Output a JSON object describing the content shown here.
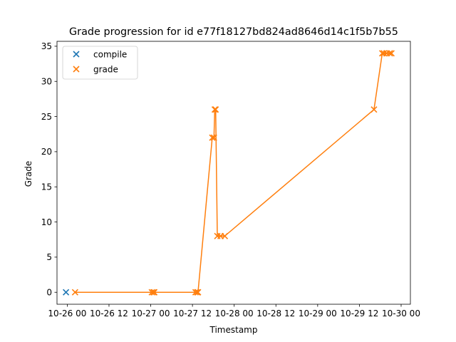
{
  "chart_data": {
    "type": "scatter",
    "title": "Grade progression for id e77f18127bd824ad8646d14c1f5b7b55",
    "xlabel": "Timestamp",
    "ylabel": "Grade",
    "x_axis_type": "datetime",
    "xlim": [
      "2025-10-25T21:03",
      "2025-10-30T02:40"
    ],
    "ylim": [
      -1.7,
      35.7
    ],
    "x_ticks": [
      {
        "value": "2025-10-26T00:00",
        "label": "10-26 00"
      },
      {
        "value": "2025-10-26T12:00",
        "label": "10-26 12"
      },
      {
        "value": "2025-10-27T00:00",
        "label": "10-27 00"
      },
      {
        "value": "2025-10-27T12:00",
        "label": "10-27 12"
      },
      {
        "value": "2025-10-28T00:00",
        "label": "10-28 00"
      },
      {
        "value": "2025-10-28T12:00",
        "label": "10-28 12"
      },
      {
        "value": "2025-10-29T00:00",
        "label": "10-29 00"
      },
      {
        "value": "2025-10-29T12:00",
        "label": "10-29 12"
      },
      {
        "value": "2025-10-30T00:00",
        "label": "10-30 00"
      }
    ],
    "y_ticks": [
      0,
      5,
      10,
      15,
      20,
      25,
      30,
      35
    ],
    "grid": false,
    "legend": {
      "position": "top-left",
      "entries": [
        "compile",
        "grade"
      ]
    },
    "series": [
      {
        "name": "compile",
        "marker": "x",
        "line": false,
        "color": "#1f77b4",
        "points": [
          {
            "x": "2025-10-25T23:38",
            "y": 0
          }
        ]
      },
      {
        "name": "grade",
        "marker": "x",
        "line": true,
        "color": "#ff7f0e",
        "points": [
          {
            "x": "2025-10-26T02:15",
            "y": 0
          },
          {
            "x": "2025-10-27T00:19",
            "y": 0
          },
          {
            "x": "2025-10-27T00:48",
            "y": 0
          },
          {
            "x": "2025-10-27T01:02",
            "y": 0
          },
          {
            "x": "2025-10-27T12:53",
            "y": 0
          },
          {
            "x": "2025-10-27T13:22",
            "y": 0
          },
          {
            "x": "2025-10-27T13:36",
            "y": 0
          },
          {
            "x": "2025-10-27T17:42",
            "y": 22
          },
          {
            "x": "2025-10-27T18:11",
            "y": 22
          },
          {
            "x": "2025-10-27T18:25",
            "y": 26
          },
          {
            "x": "2025-10-27T18:40",
            "y": 26
          },
          {
            "x": "2025-10-27T19:09",
            "y": 8
          },
          {
            "x": "2025-10-27T20:05",
            "y": 8
          },
          {
            "x": "2025-10-27T21:18",
            "y": 8
          },
          {
            "x": "2025-10-29T16:12",
            "y": 26
          },
          {
            "x": "2025-10-29T18:35",
            "y": 34
          },
          {
            "x": "2025-10-29T19:04",
            "y": 34
          },
          {
            "x": "2025-10-29T19:47",
            "y": 34
          },
          {
            "x": "2025-10-29T20:44",
            "y": 34
          },
          {
            "x": "2025-10-29T21:13",
            "y": 34
          }
        ]
      }
    ]
  }
}
